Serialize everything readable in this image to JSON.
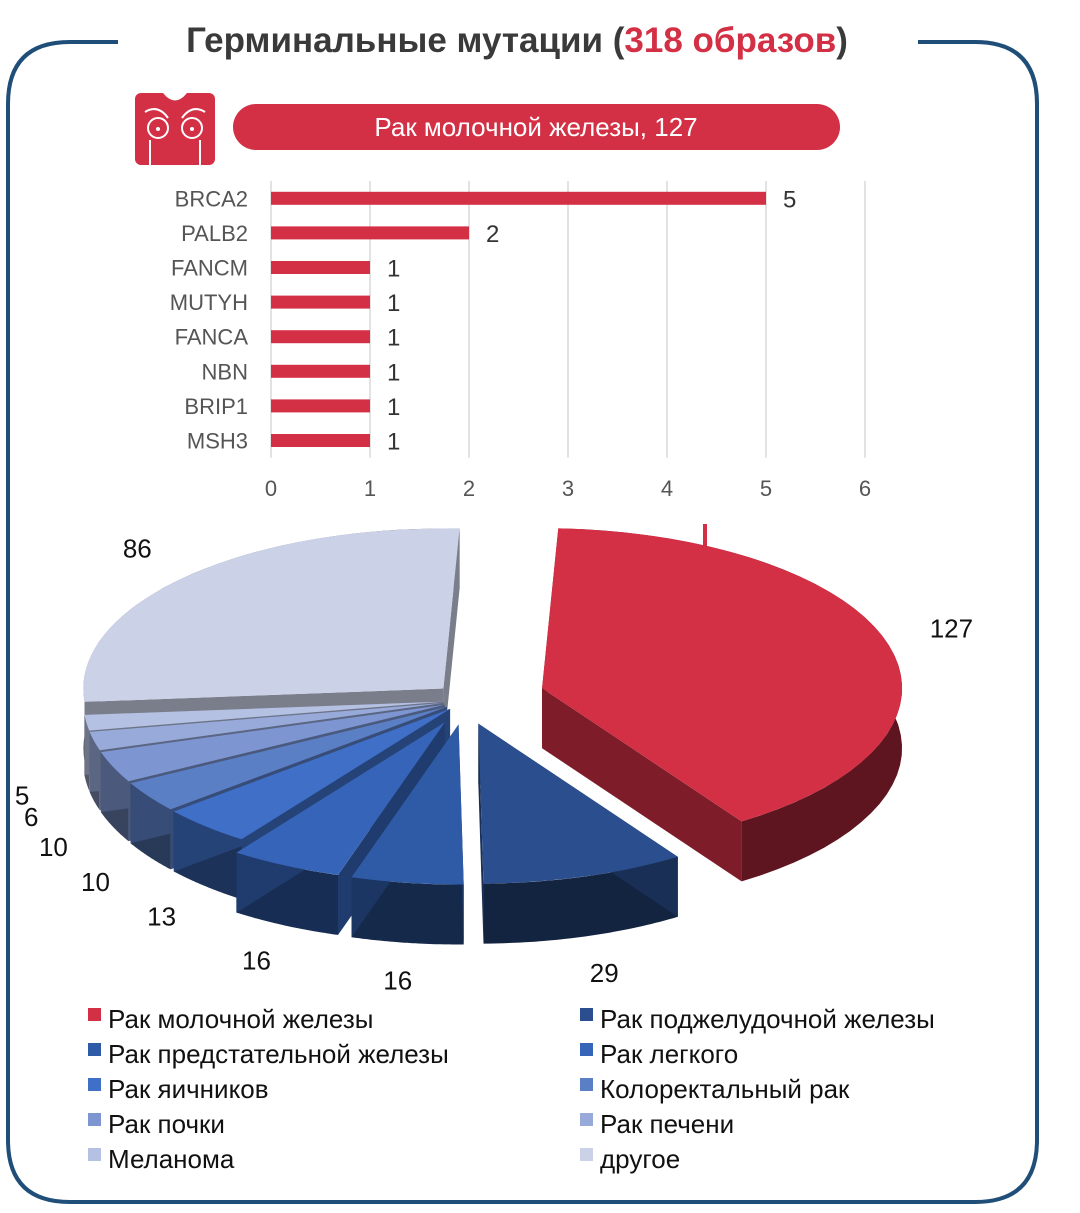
{
  "title": {
    "prefix": "Герминальные мутации (",
    "highlight": "318 образов",
    "suffix": ")"
  },
  "icon": "torso-icon",
  "colors": {
    "accent": "#d32f45",
    "frame": "#1f4e79",
    "title": "#3a3a3a"
  },
  "chart_data": [
    {
      "type": "bar",
      "orientation": "horizontal",
      "title": "Рак молочной железы, 127",
      "categories": [
        "BRCA2",
        "PALB2",
        "FANCM",
        "MUTYH",
        "FANCA",
        "NBN",
        "BRIP1",
        "MSH3"
      ],
      "values": [
        5,
        2,
        1,
        1,
        1,
        1,
        1,
        1
      ],
      "xlim": [
        0,
        6
      ],
      "xticks": [
        "0",
        "1",
        "2",
        "3",
        "4",
        "5",
        "6"
      ],
      "grid": "vertical",
      "color": "#d32f45",
      "data_labels": true
    },
    {
      "type": "pie",
      "style": "3d-exploded",
      "slices": [
        {
          "label": "Рак молочной железы",
          "value": 127,
          "color": "#d32f45"
        },
        {
          "label": "Рак поджелудочной железы",
          "value": 29,
          "color": "#2b4f8e"
        },
        {
          "label": "Рак предстательной железы",
          "value": 16,
          "color": "#2f5aa6"
        },
        {
          "label": "Рак легкого",
          "value": 16,
          "color": "#3564b8"
        },
        {
          "label": "Рак яичников",
          "value": 13,
          "color": "#3f6fc6"
        },
        {
          "label": "Колоректальный рак",
          "value": 10,
          "color": "#5b7fc4"
        },
        {
          "label": "Рак почки",
          "value": 10,
          "color": "#7d95d0"
        },
        {
          "label": "Рак печени",
          "value": 6,
          "color": "#98aad9"
        },
        {
          "label": "Меланома",
          "value": 5,
          "color": "#b5c1e2"
        },
        {
          "label": "другое",
          "value": 86,
          "color": "#cbd1e6"
        }
      ],
      "legend": "bottom"
    }
  ]
}
